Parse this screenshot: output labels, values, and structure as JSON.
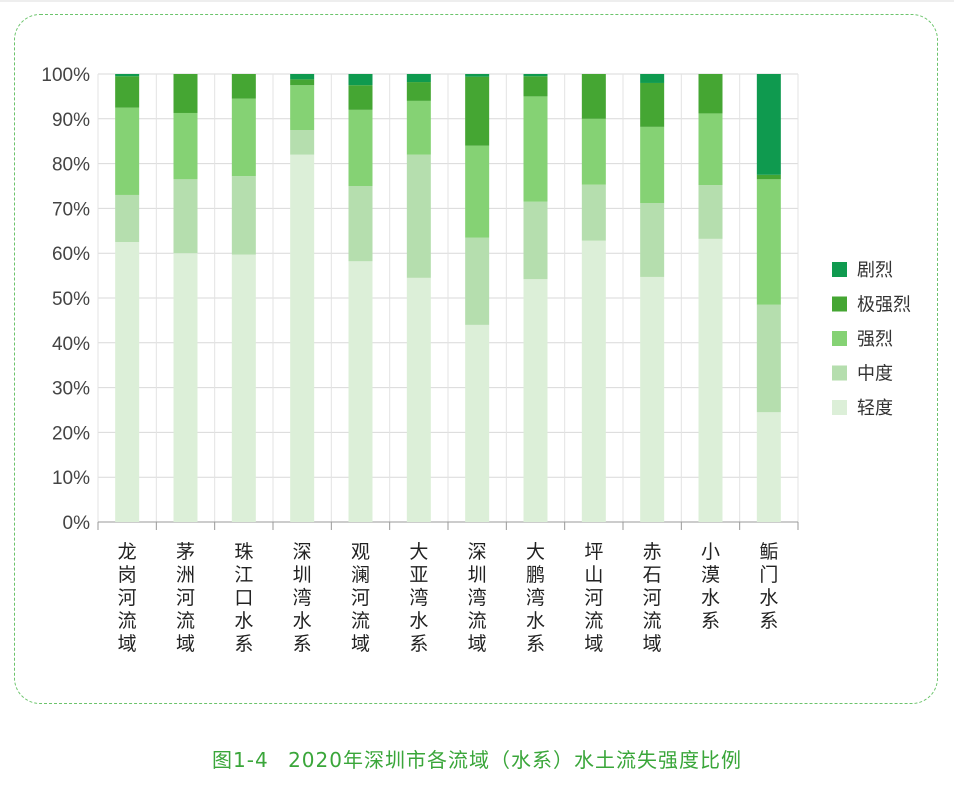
{
  "caption": {
    "number": "图1-4",
    "text": "2020年深圳市各流域（水系）水土流失强度比例"
  },
  "colors": {
    "剧烈": "#0f9a4f",
    "极强烈": "#45a633",
    "强烈": "#85d274",
    "中度": "#b5deae",
    "轻度": "#dcefd8"
  },
  "chart_data": {
    "type": "bar",
    "stacked": true,
    "title": "",
    "xlabel": "",
    "ylabel": "",
    "ylim": [
      0,
      100
    ],
    "yticks": [
      "0%",
      "10%",
      "20%",
      "30%",
      "40%",
      "50%",
      "60%",
      "70%",
      "80%",
      "90%",
      "100%"
    ],
    "legend_position": "right",
    "categories": [
      "龙岗河流域",
      "茅洲河流域",
      "珠江口水系",
      "深圳湾水系",
      "观澜河流域",
      "大亚湾水系",
      "深圳湾流域",
      "大鹏湾水系",
      "坪山河流域",
      "赤石河流域",
      "小漠水系",
      "鲘门水系"
    ],
    "series": [
      {
        "name": "轻度",
        "values": [
          62.5,
          60.0,
          59.7,
          82.0,
          58.2,
          54.5,
          44.0,
          54.2,
          62.8,
          54.7,
          63.2,
          24.5
        ]
      },
      {
        "name": "中度",
        "values": [
          10.5,
          16.5,
          17.5,
          5.5,
          16.8,
          27.5,
          19.5,
          17.3,
          12.5,
          16.5,
          12.0,
          24.0
        ]
      },
      {
        "name": "强烈",
        "values": [
          19.5,
          14.8,
          17.3,
          10.0,
          17.0,
          12.0,
          20.5,
          23.5,
          14.7,
          17.0,
          16.0,
          28.0
        ]
      },
      {
        "name": "极强烈",
        "values": [
          7.0,
          8.7,
          5.5,
          1.3,
          5.5,
          4.2,
          15.4,
          4.5,
          10.0,
          9.8,
          8.8,
          1.0
        ]
      },
      {
        "name": "剧烈",
        "values": [
          0.5,
          0.0,
          0.0,
          1.2,
          2.5,
          1.8,
          0.6,
          0.5,
          0.0,
          2.0,
          0.0,
          22.5
        ]
      }
    ],
    "legend": [
      "剧烈",
      "极强烈",
      "强烈",
      "中度",
      "轻度"
    ]
  }
}
